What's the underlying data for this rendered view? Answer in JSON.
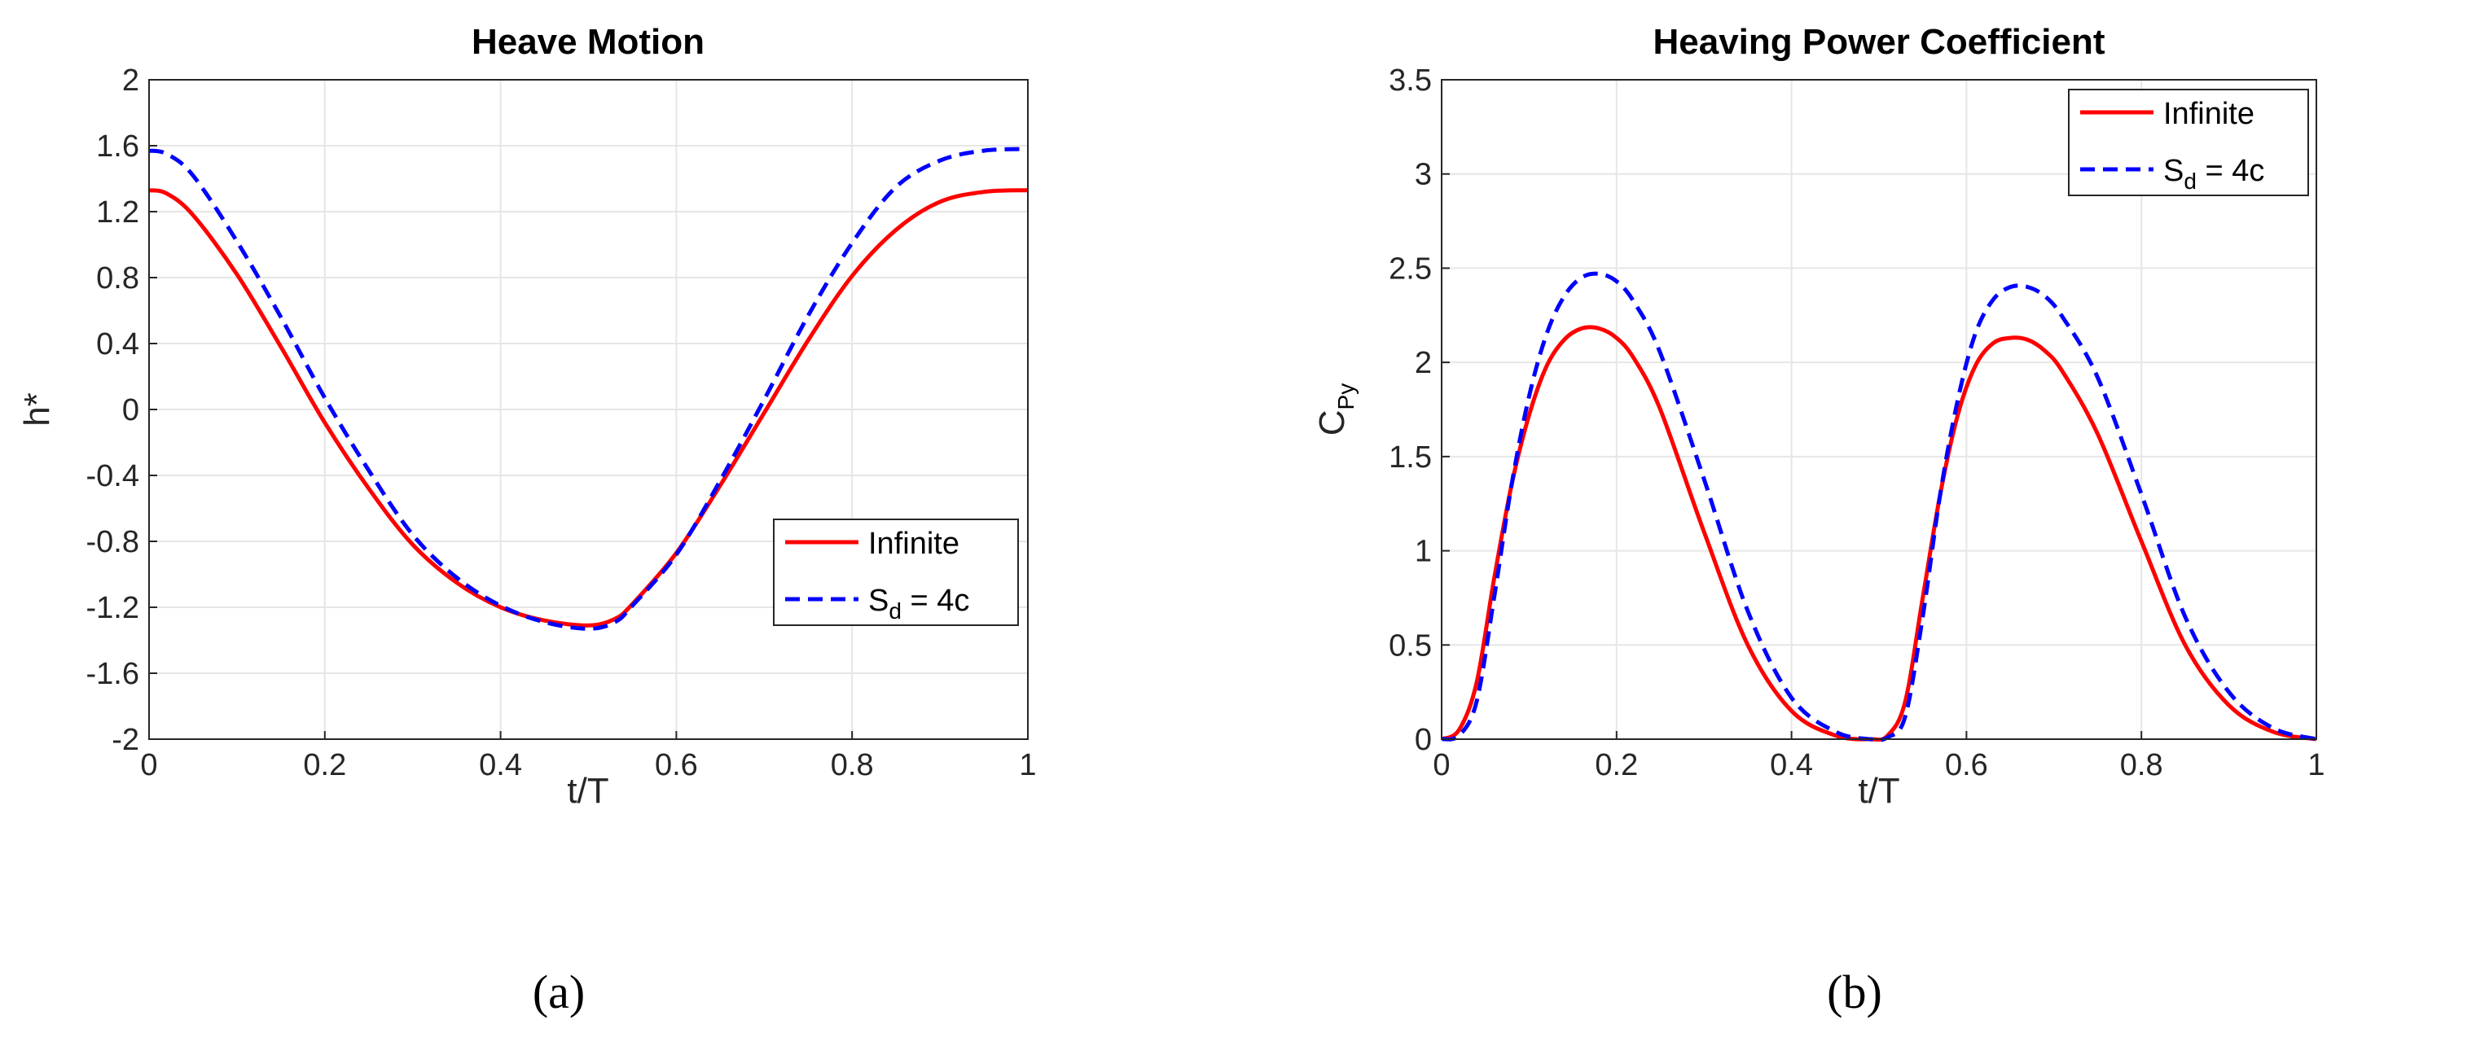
{
  "chart_data": [
    {
      "type": "line",
      "title": "Heave Motion",
      "xlabel": "t/T",
      "ylabel": "h*",
      "xlim": [
        0,
        1
      ],
      "ylim": [
        -2,
        2
      ],
      "xticks": [
        0,
        0.2,
        0.4,
        0.6,
        0.8,
        1
      ],
      "xtick_labels": [
        "0",
        "0.2",
        "0.4",
        "0.6",
        "0.8",
        "1"
      ],
      "yticks": [
        -2,
        -1.6,
        -1.2,
        -0.8,
        -0.4,
        0,
        0.4,
        0.8,
        1.2,
        1.6,
        2
      ],
      "ytick_labels": [
        "-2",
        "-1.6",
        "-1.2",
        "-0.8",
        "-0.4",
        "0",
        "0.4",
        "0.8",
        "1.2",
        "1.6",
        "2"
      ],
      "grid": true,
      "legend_position": "right-middle",
      "caption": "(a)",
      "series": [
        {
          "name": "Infinite",
          "name_main": "Infinite",
          "name_sub": "",
          "name_suffix": "",
          "color": "#ff0000",
          "style": "solid",
          "x": [
            0,
            0.02,
            0.05,
            0.1,
            0.15,
            0.2,
            0.25,
            0.3,
            0.35,
            0.4,
            0.45,
            0.5,
            0.53,
            0.55,
            0.6,
            0.65,
            0.7,
            0.75,
            0.8,
            0.85,
            0.9,
            0.95,
            1
          ],
          "y": [
            1.33,
            1.31,
            1.18,
            0.82,
            0.38,
            -0.08,
            -0.48,
            -0.82,
            -1.05,
            -1.2,
            -1.28,
            -1.31,
            -1.27,
            -1.18,
            -0.87,
            -0.46,
            -0.02,
            0.42,
            0.81,
            1.09,
            1.26,
            1.32,
            1.33
          ]
        },
        {
          "name": "S_d = 4c",
          "name_main": "S",
          "name_sub": "d",
          "name_suffix": " = 4c",
          "color": "#0000ff",
          "style": "dashed",
          "x": [
            0,
            0.02,
            0.05,
            0.1,
            0.15,
            0.2,
            0.25,
            0.3,
            0.35,
            0.4,
            0.45,
            0.5,
            0.53,
            0.55,
            0.6,
            0.65,
            0.7,
            0.75,
            0.8,
            0.85,
            0.9,
            0.95,
            1
          ],
          "y": [
            1.57,
            1.55,
            1.42,
            1.02,
            0.56,
            0.07,
            -0.37,
            -0.76,
            -1.02,
            -1.19,
            -1.29,
            -1.33,
            -1.29,
            -1.19,
            -0.88,
            -0.43,
            0.06,
            0.57,
            1.01,
            1.35,
            1.51,
            1.57,
            1.58
          ]
        }
      ]
    },
    {
      "type": "line",
      "title": "Heaving Power Coefficient",
      "xlabel": "t/T",
      "ylabel": "C_Py",
      "ylabel_main": "C",
      "ylabel_sub": "Py",
      "xlim": [
        0,
        1
      ],
      "ylim": [
        0,
        3.5
      ],
      "xticks": [
        0,
        0.2,
        0.4,
        0.6,
        0.8,
        1
      ],
      "xtick_labels": [
        "0",
        "0.2",
        "0.4",
        "0.6",
        "0.8",
        "1"
      ],
      "yticks": [
        0,
        0.5,
        1,
        1.5,
        2,
        2.5,
        3,
        3.5
      ],
      "ytick_labels": [
        "0",
        "0.5",
        "1",
        "1.5",
        "2",
        "2.5",
        "3",
        "3.5"
      ],
      "grid": true,
      "legend_position": "top-right",
      "caption": "(b)",
      "series": [
        {
          "name": "Infinite",
          "name_main": "Infinite",
          "name_sub": "",
          "name_suffix": "",
          "color": "#ff0000",
          "style": "solid",
          "x": [
            0,
            0.02,
            0.04,
            0.06,
            0.08,
            0.1,
            0.12,
            0.14,
            0.16,
            0.18,
            0.2,
            0.22,
            0.25,
            0.3,
            0.35,
            0.4,
            0.45,
            0.49,
            0.51,
            0.53,
            0.55,
            0.57,
            0.59,
            0.61,
            0.63,
            0.65,
            0.67,
            0.69,
            0.71,
            0.75,
            0.8,
            0.85,
            0.9,
            0.95,
            1
          ],
          "y": [
            0,
            0.05,
            0.3,
            0.85,
            1.35,
            1.72,
            1.98,
            2.12,
            2.18,
            2.18,
            2.13,
            2.02,
            1.75,
            1.1,
            0.5,
            0.15,
            0.02,
            0,
            0.02,
            0.2,
            0.75,
            1.3,
            1.72,
            1.98,
            2.1,
            2.13,
            2.12,
            2.06,
            1.95,
            1.62,
            1.05,
            0.5,
            0.18,
            0.04,
            0
          ]
        },
        {
          "name": "S_d = 4c",
          "name_main": "S",
          "name_sub": "d",
          "name_suffix": " = 4c",
          "color": "#0000ff",
          "style": "dashed",
          "x": [
            0,
            0.02,
            0.04,
            0.06,
            0.08,
            0.1,
            0.12,
            0.14,
            0.16,
            0.18,
            0.2,
            0.22,
            0.25,
            0.3,
            0.35,
            0.4,
            0.45,
            0.49,
            0.51,
            0.53,
            0.55,
            0.57,
            0.59,
            0.61,
            0.63,
            0.65,
            0.67,
            0.69,
            0.71,
            0.75,
            0.8,
            0.85,
            0.9,
            0.95,
            1
          ],
          "y": [
            0,
            0.02,
            0.2,
            0.75,
            1.35,
            1.82,
            2.15,
            2.35,
            2.45,
            2.47,
            2.43,
            2.32,
            2.05,
            1.38,
            0.68,
            0.22,
            0.04,
            0,
            0.01,
            0.12,
            0.65,
            1.3,
            1.8,
            2.15,
            2.33,
            2.4,
            2.4,
            2.35,
            2.24,
            1.92,
            1.3,
            0.65,
            0.25,
            0.06,
            0
          ]
        }
      ]
    }
  ]
}
